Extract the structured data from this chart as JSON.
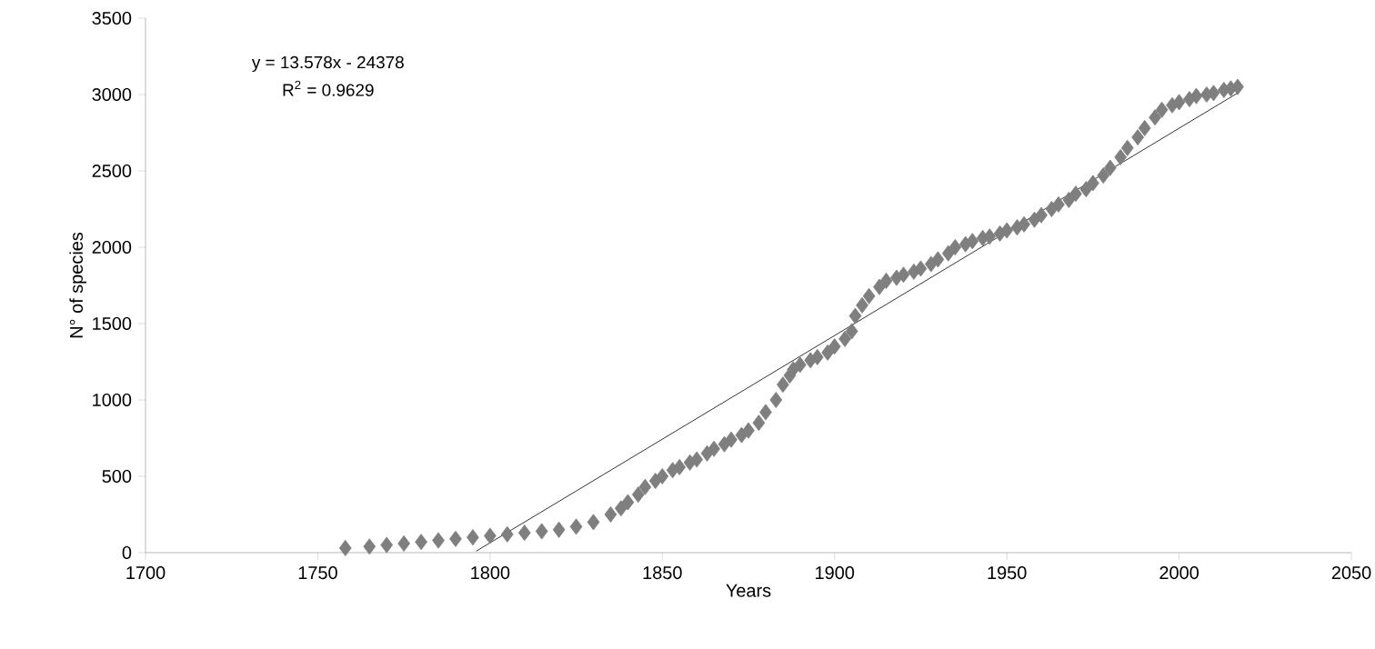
{
  "chart_data": {
    "type": "scatter",
    "xlabel": "Years",
    "ylabel": "N° of species",
    "xlim": [
      1700,
      2050
    ],
    "ylim": [
      0,
      3500
    ],
    "xticks": [
      1700,
      1750,
      1800,
      1850,
      1900,
      1950,
      2000,
      2050
    ],
    "yticks": [
      0,
      500,
      1000,
      1500,
      2000,
      2500,
      3000,
      3500
    ],
    "grid": false,
    "annotations": [
      "y = 13.578x - 24378",
      "R$^{2}$ = 0.9629"
    ],
    "series": [
      {
        "color": "#7f7f7f",
        "marker": "diamond",
        "x": [
          1758,
          1765,
          1770,
          1775,
          1780,
          1785,
          1790,
          1795,
          1800,
          1805,
          1810,
          1815,
          1820,
          1825,
          1830,
          1835,
          1838,
          1840,
          1843,
          1845,
          1848,
          1850,
          1853,
          1855,
          1858,
          1860,
          1863,
          1865,
          1868,
          1870,
          1873,
          1875,
          1878,
          1880,
          1883,
          1885,
          1887,
          1888,
          1890,
          1893,
          1895,
          1898,
          1900,
          1903,
          1905,
          1906,
          1908,
          1910,
          1913,
          1915,
          1918,
          1920,
          1923,
          1925,
          1928,
          1930,
          1933,
          1935,
          1938,
          1940,
          1943,
          1945,
          1948,
          1950,
          1953,
          1955,
          1958,
          1960,
          1963,
          1965,
          1968,
          1970,
          1973,
          1975,
          1978,
          1980,
          1983,
          1985,
          1988,
          1990,
          1993,
          1995,
          1998,
          2000,
          2003,
          2005,
          2008,
          2010,
          2013,
          2015,
          2017
        ],
        "values": [
          30,
          40,
          50,
          60,
          70,
          80,
          90,
          100,
          110,
          120,
          130,
          140,
          150,
          170,
          200,
          250,
          290,
          330,
          380,
          430,
          470,
          500,
          540,
          560,
          590,
          610,
          650,
          680,
          710,
          740,
          770,
          800,
          850,
          920,
          1000,
          1100,
          1160,
          1200,
          1230,
          1260,
          1280,
          1310,
          1350,
          1400,
          1450,
          1550,
          1620,
          1680,
          1740,
          1780,
          1800,
          1820,
          1840,
          1860,
          1890,
          1920,
          1960,
          2000,
          2020,
          2040,
          2060,
          2070,
          2090,
          2110,
          2130,
          2150,
          2180,
          2210,
          2250,
          2280,
          2310,
          2350,
          2380,
          2420,
          2470,
          2520,
          2590,
          2650,
          2720,
          2780,
          2850,
          2900,
          2930,
          2950,
          2970,
          2990,
          3000,
          3010,
          3030,
          3040,
          3050
        ]
      },
      {
        "type": "line",
        "color": "#000000",
        "marker": "none",
        "x": [
          1796,
          2017
        ],
        "values": [
          10,
          3010
        ]
      }
    ]
  }
}
